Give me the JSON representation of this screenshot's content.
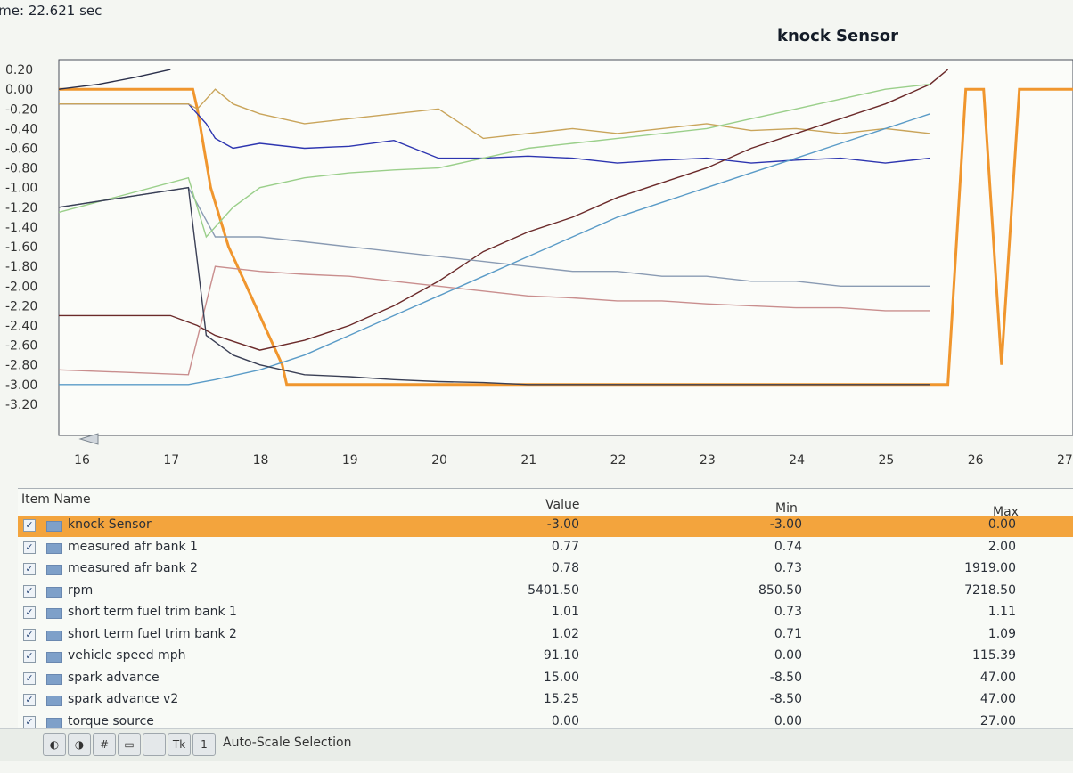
{
  "time_readout": "ime: 22.621 sec",
  "chart_title": "knock Sensor",
  "toolbar": {
    "autoscale_label": "Auto-Scale Selection",
    "hash_icon": "#",
    "tp_icon": "Tk",
    "one_icon": "1"
  },
  "table": {
    "headers": {
      "name": "Item Name",
      "value": "Value",
      "min": "Min",
      "max": "Max"
    },
    "rows": [
      {
        "name": "knock Sensor",
        "value": "-3.00",
        "min": "-3.00",
        "max": "0.00"
      },
      {
        "name": "measured afr bank 1",
        "value": "0.77",
        "min": "0.74",
        "max": "2.00"
      },
      {
        "name": "measured afr bank 2",
        "value": "0.78",
        "min": "0.73",
        "max": "1919.00"
      },
      {
        "name": "rpm",
        "value": "5401.50",
        "min": "850.50",
        "max": "7218.50"
      },
      {
        "name": "short term fuel trim bank 1",
        "value": "1.01",
        "min": "0.73",
        "max": "1.11"
      },
      {
        "name": "short term fuel trim bank 2",
        "value": "1.02",
        "min": "0.71",
        "max": "1.09"
      },
      {
        "name": "vehicle speed mph",
        "value": "91.10",
        "min": "0.00",
        "max": "115.39"
      },
      {
        "name": "spark advance",
        "value": "15.00",
        "min": "-8.50",
        "max": "47.00"
      },
      {
        "name": "spark advance v2",
        "value": "15.25",
        "min": "-8.50",
        "max": "47.00"
      },
      {
        "name": "torque source",
        "value": "0.00",
        "min": "0.00",
        "max": "27.00"
      }
    ]
  },
  "chart_data": {
    "type": "line",
    "title": "knock Sensor",
    "xlabel": "",
    "ylabel": "",
    "xlim": [
      15.75,
      27.1
    ],
    "ylim": [
      -3.3,
      0.3
    ],
    "xticks": [
      "16",
      "17",
      "18",
      "19",
      "20",
      "21",
      "22",
      "23",
      "24",
      "25",
      "26",
      "27"
    ],
    "yticks": [
      "0.20",
      "0.00",
      "-0.20",
      "-0.40",
      "-0.60",
      "-0.80",
      "-1.00",
      "-1.20",
      "-1.40",
      "-1.60",
      "-1.80",
      "-2.00",
      "-2.20",
      "-2.40",
      "-2.60",
      "-2.80",
      "-3.00",
      "-3.20"
    ],
    "grid": false,
    "series": [
      {
        "name": "knock Sensor",
        "color": "#f0962e",
        "x": [
          15.75,
          17.25,
          17.3,
          17.45,
          17.65,
          17.85,
          18.05,
          18.25,
          18.3,
          25.65,
          25.7,
          25.9,
          26.1,
          26.3,
          26.5,
          26.75,
          26.9,
          27.1
        ],
        "y": [
          0.0,
          0.0,
          -0.2,
          -1.0,
          -1.6,
          -2.0,
          -2.4,
          -2.8,
          -3.0,
          -3.0,
          -3.0,
          0.0,
          0.0,
          -2.8,
          0.0,
          0.0,
          0.0,
          0.0
        ]
      },
      {
        "name": "measured afr bank 1",
        "color": "#2d35b0",
        "x": [
          15.75,
          17.2,
          17.3,
          17.4,
          17.5,
          17.7,
          18.0,
          18.5,
          19.0,
          19.5,
          20.0,
          20.5,
          21.0,
          21.5,
          22.0,
          22.5,
          23.0,
          23.5,
          24.0,
          24.5,
          25.0,
          25.5
        ],
        "y": [
          -0.15,
          -0.15,
          -0.25,
          -0.35,
          -0.5,
          -0.6,
          -0.55,
          -0.6,
          -0.58,
          -0.52,
          -0.7,
          -0.7,
          -0.68,
          -0.7,
          -0.75,
          -0.72,
          -0.7,
          -0.75,
          -0.72,
          -0.7,
          -0.75,
          -0.7
        ]
      },
      {
        "name": "measured afr bank 2",
        "color": "#c9a45a",
        "x": [
          15.75,
          17.2,
          17.3,
          17.5,
          17.7,
          18.0,
          18.5,
          19.0,
          19.5,
          20.0,
          20.5,
          21.0,
          21.5,
          22.0,
          22.5,
          23.0,
          23.5,
          24.0,
          24.5,
          25.0,
          25.5
        ],
        "y": [
          -0.15,
          -0.15,
          -0.2,
          0.0,
          -0.15,
          -0.25,
          -0.35,
          -0.3,
          -0.25,
          -0.2,
          -0.5,
          -0.45,
          -0.4,
          -0.45,
          -0.4,
          -0.35,
          -0.42,
          -0.4,
          -0.45,
          -0.4,
          -0.45
        ]
      },
      {
        "name": "rpm",
        "color": "#6b2a2a",
        "x": [
          15.75,
          17.0,
          17.3,
          17.5,
          18.0,
          18.5,
          19.0,
          19.5,
          20.0,
          20.5,
          21.0,
          21.5,
          22.0,
          22.5,
          23.0,
          23.5,
          24.0,
          24.5,
          25.0,
          25.5,
          25.7
        ],
        "y": [
          -2.3,
          -2.3,
          -2.4,
          -2.5,
          -2.65,
          -2.55,
          -2.4,
          -2.2,
          -1.95,
          -1.65,
          -1.45,
          -1.3,
          -1.1,
          -0.95,
          -0.8,
          -0.6,
          -0.45,
          -0.3,
          -0.15,
          0.05,
          0.2
        ]
      },
      {
        "name": "short term fuel trim bank 1",
        "color": "#8a9bb3",
        "x": [
          15.75,
          17.2,
          17.5,
          18.0,
          18.5,
          19.0,
          19.5,
          20.0,
          20.5,
          21.0,
          21.5,
          22.0,
          22.5,
          23.0,
          23.5,
          24.0,
          24.5,
          25.0,
          25.5
        ],
        "y": [
          -1.2,
          -1.0,
          -1.5,
          -1.5,
          -1.55,
          -1.6,
          -1.65,
          -1.7,
          -1.75,
          -1.8,
          -1.85,
          -1.85,
          -1.9,
          -1.9,
          -1.95,
          -1.95,
          -2.0,
          -2.0,
          -2.0
        ]
      },
      {
        "name": "short term fuel trim bank 2",
        "color": "#c98e8e",
        "x": [
          15.75,
          17.2,
          17.5,
          18.0,
          18.5,
          19.0,
          19.5,
          20.0,
          20.5,
          21.0,
          21.5,
          22.0,
          22.5,
          23.0,
          23.5,
          24.0,
          24.5,
          25.0,
          25.5
        ],
        "y": [
          -2.85,
          -2.9,
          -1.8,
          -1.85,
          -1.88,
          -1.9,
          -1.95,
          -2.0,
          -2.05,
          -2.1,
          -2.12,
          -2.15,
          -2.15,
          -2.18,
          -2.2,
          -2.22,
          -2.22,
          -2.25,
          -2.25
        ]
      },
      {
        "name": "vehicle speed mph",
        "color": "#5a9bc7",
        "x": [
          15.75,
          17.2,
          17.5,
          18.0,
          18.5,
          19.0,
          19.5,
          20.0,
          20.5,
          21.0,
          21.5,
          22.0,
          22.5,
          23.0,
          23.5,
          24.0,
          24.5,
          25.0,
          25.5
        ],
        "y": [
          -3.0,
          -3.0,
          -2.95,
          -2.85,
          -2.7,
          -2.5,
          -2.3,
          -2.1,
          -1.9,
          -1.7,
          -1.5,
          -1.3,
          -1.15,
          -1.0,
          -0.85,
          -0.7,
          -0.55,
          -0.4,
          -0.25
        ]
      },
      {
        "name": "spark advance",
        "color": "#9acf8a",
        "x": [
          15.75,
          17.2,
          17.4,
          17.7,
          18.0,
          18.5,
          19.0,
          19.5,
          20.0,
          20.5,
          21.0,
          21.5,
          22.0,
          22.5,
          23.0,
          23.5,
          24.0,
          24.5,
          25.0,
          25.5
        ],
        "y": [
          -1.25,
          -0.9,
          -1.5,
          -1.2,
          -1.0,
          -0.9,
          -0.85,
          -0.82,
          -0.8,
          -0.7,
          -0.6,
          -0.55,
          -0.5,
          -0.45,
          -0.4,
          -0.3,
          -0.2,
          -0.1,
          0.0,
          0.05
        ]
      },
      {
        "name": "spark advance v2",
        "color": "#3a3f55",
        "x": [
          15.75,
          17.2,
          17.4,
          17.7,
          18.0,
          18.5,
          19.0,
          19.5,
          20.0,
          20.5,
          21.0,
          21.5,
          22.0,
          22.5,
          23.0,
          23.5,
          24.0,
          24.5,
          25.0,
          25.5
        ],
        "y": [
          -1.2,
          -1.0,
          -2.5,
          -2.7,
          -2.8,
          -2.9,
          -2.92,
          -2.95,
          -2.97,
          -2.98,
          -3.0,
          -3.0,
          -3.0,
          -3.0,
          -3.0,
          -3.0,
          -3.0,
          -3.0,
          -3.0,
          -3.0
        ]
      },
      {
        "name": "torque source",
        "color": "#2a2f4a",
        "x": [
          15.75,
          16.2,
          16.6,
          17.0
        ],
        "y": [
          0.0,
          0.05,
          0.12,
          0.2
        ]
      }
    ]
  }
}
